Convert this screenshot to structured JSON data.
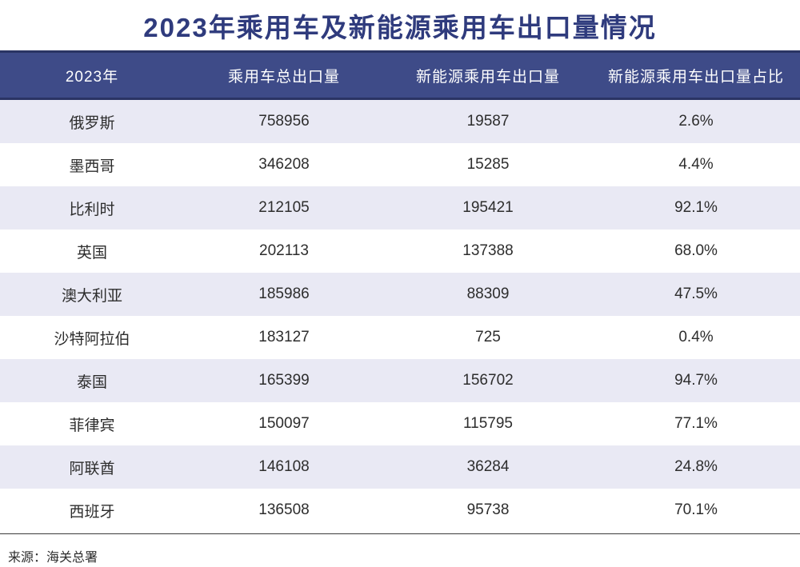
{
  "title": "2023年乘用车及新能源乘用车出口量情况",
  "source_note": "来源：海关总署",
  "colors": {
    "title_text": "#2F3B7D",
    "header_bg": "#3E4B88",
    "header_border": "#2A3464",
    "header_text": "#FFFFFF",
    "row_alt_bg": "#E9E9F4",
    "row_bg": "#FFFFFF",
    "body_text": "#2D2D2D"
  },
  "table": {
    "columns": [
      "2023年",
      "乘用车总出口量",
      "新能源乘用车出口量",
      "新能源乘用车出口量占比"
    ],
    "rows": [
      {
        "country": "俄罗斯",
        "total": "758956",
        "nev": "19587",
        "share": "2.6%"
      },
      {
        "country": "墨西哥",
        "total": "346208",
        "nev": "15285",
        "share": "4.4%"
      },
      {
        "country": "比利时",
        "total": "212105",
        "nev": "195421",
        "share": "92.1%"
      },
      {
        "country": "英国",
        "total": "202113",
        "nev": "137388",
        "share": "68.0%"
      },
      {
        "country": "澳大利亚",
        "total": "185986",
        "nev": "88309",
        "share": "47.5%"
      },
      {
        "country": "沙特阿拉伯",
        "total": "183127",
        "nev": "725",
        "share": "0.4%"
      },
      {
        "country": "泰国",
        "total": "165399",
        "nev": "156702",
        "share": "94.7%"
      },
      {
        "country": "菲律宾",
        "total": "150097",
        "nev": "115795",
        "share": "77.1%"
      },
      {
        "country": "阿联酋",
        "total": "146108",
        "nev": "36284",
        "share": "24.8%"
      },
      {
        "country": "西班牙",
        "total": "136508",
        "nev": "95738",
        "share": "70.1%"
      }
    ]
  },
  "chart_data": {
    "type": "table",
    "title": "2023年乘用车及新能源乘用车出口量情况",
    "columns": [
      "2023年",
      "乘用车总出口量",
      "新能源乘用车出口量",
      "新能源乘用车出口量占比"
    ],
    "rows": [
      [
        "俄罗斯",
        758956,
        19587,
        "2.6%"
      ],
      [
        "墨西哥",
        346208,
        15285,
        "4.4%"
      ],
      [
        "比利时",
        212105,
        195421,
        "92.1%"
      ],
      [
        "英国",
        202113,
        137388,
        "68.0%"
      ],
      [
        "澳大利亚",
        185986,
        88309,
        "47.5%"
      ],
      [
        "沙特阿拉伯",
        183127,
        725,
        "0.4%"
      ],
      [
        "泰国",
        165399,
        156702,
        "94.7%"
      ],
      [
        "菲律宾",
        150097,
        115795,
        "77.1%"
      ],
      [
        "阿联酋",
        146108,
        36284,
        "24.8%"
      ],
      [
        "西班牙",
        136508,
        95738,
        "70.1%"
      ]
    ],
    "source": "来源：海关总署"
  }
}
